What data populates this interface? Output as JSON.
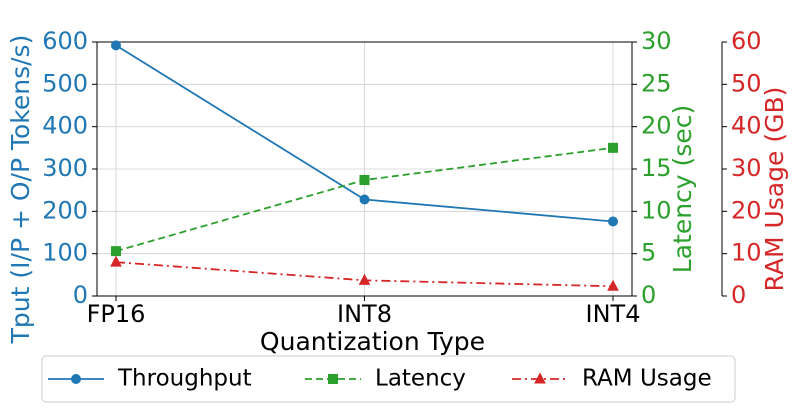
{
  "chart_data": {
    "type": "line",
    "categories": [
      "FP16",
      "INT8",
      "INT4"
    ],
    "x_label": "Quantization Type",
    "y_label": "Tput (I/P + O/P Tokens/s)",
    "y2_label": "Latency (sec)",
    "y3_label": "RAM Usage (GB)",
    "ylim": [
      0,
      600
    ],
    "yticks": [
      0,
      100,
      200,
      300,
      400,
      500,
      600
    ],
    "y2lim": [
      0,
      30
    ],
    "y2ticks": [
      0,
      5,
      10,
      15,
      20,
      25,
      30
    ],
    "y3lim": [
      0,
      60
    ],
    "y3ticks": [
      0,
      10,
      20,
      30,
      40,
      50,
      60
    ],
    "grid": true,
    "legend": "bottom",
    "series": [
      {
        "name": "Throughput",
        "color": "#1f77b4",
        "axis": "y",
        "marker": "circle",
        "linestyle": "solid",
        "values": [
          592,
          228,
          176
        ]
      },
      {
        "name": "Latency",
        "color": "#2ca02c",
        "axis": "y2",
        "marker": "square",
        "linestyle": "dashed",
        "values": [
          5.3,
          13.7,
          17.5
        ]
      },
      {
        "name": "RAM Usage",
        "color": "#d62728",
        "axis": "y3",
        "marker": "triangle",
        "linestyle": "dashdot",
        "values": [
          8,
          3.7,
          2.3
        ]
      }
    ]
  }
}
